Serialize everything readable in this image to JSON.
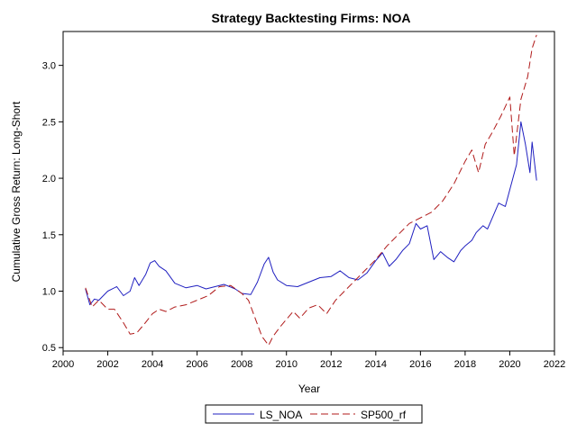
{
  "chart_data": {
    "type": "line",
    "title": "Strategy Backtesting  Firms: NOA",
    "xlabel": "Year",
    "ylabel": "Cumulative Gross Return: Long-Short",
    "xlim": [
      2000,
      2022
    ],
    "ylim": [
      0.47,
      3.3
    ],
    "x_ticks": [
      2000,
      2002,
      2004,
      2006,
      2008,
      2010,
      2012,
      2014,
      2016,
      2018,
      2020,
      2022
    ],
    "y_ticks": [
      0.5,
      1.0,
      1.5,
      2.0,
      2.5,
      3.0
    ],
    "x_tick_labels": [
      "2000",
      "2002",
      "2004",
      "2006",
      "2008",
      "2010",
      "2012",
      "2014",
      "2016",
      "2018",
      "2020",
      "2022"
    ],
    "y_tick_labels": [
      "0.5",
      "1.0",
      "1.5",
      "2.0",
      "2.5",
      "3.0"
    ],
    "grid": false,
    "legend_position": "bottom",
    "series": [
      {
        "name": "LS_NOA",
        "color": "#2020c0",
        "dash": "solid",
        "points": [
          [
            2001.0,
            1.02
          ],
          [
            2001.2,
            0.88
          ],
          [
            2001.4,
            0.93
          ],
          [
            2001.6,
            0.92
          ],
          [
            2001.8,
            0.96
          ],
          [
            2002.0,
            1.0
          ],
          [
            2002.4,
            1.04
          ],
          [
            2002.7,
            0.96
          ],
          [
            2003.0,
            1.0
          ],
          [
            2003.2,
            1.12
          ],
          [
            2003.4,
            1.05
          ],
          [
            2003.7,
            1.15
          ],
          [
            2003.9,
            1.25
          ],
          [
            2004.1,
            1.27
          ],
          [
            2004.3,
            1.22
          ],
          [
            2004.6,
            1.18
          ],
          [
            2005.0,
            1.07
          ],
          [
            2005.5,
            1.03
          ],
          [
            2006.0,
            1.05
          ],
          [
            2006.4,
            1.02
          ],
          [
            2006.8,
            1.04
          ],
          [
            2007.2,
            1.06
          ],
          [
            2007.7,
            1.02
          ],
          [
            2008.0,
            0.98
          ],
          [
            2008.4,
            0.97
          ],
          [
            2008.7,
            1.08
          ],
          [
            2009.0,
            1.24
          ],
          [
            2009.2,
            1.3
          ],
          [
            2009.4,
            1.17
          ],
          [
            2009.6,
            1.1
          ],
          [
            2010.0,
            1.05
          ],
          [
            2010.5,
            1.04
          ],
          [
            2011.0,
            1.08
          ],
          [
            2011.5,
            1.12
          ],
          [
            2012.0,
            1.13
          ],
          [
            2012.4,
            1.18
          ],
          [
            2012.8,
            1.12
          ],
          [
            2013.2,
            1.1
          ],
          [
            2013.6,
            1.16
          ],
          [
            2014.0,
            1.27
          ],
          [
            2014.3,
            1.34
          ],
          [
            2014.6,
            1.22
          ],
          [
            2014.9,
            1.28
          ],
          [
            2015.2,
            1.36
          ],
          [
            2015.5,
            1.42
          ],
          [
            2015.8,
            1.6
          ],
          [
            2016.0,
            1.55
          ],
          [
            2016.3,
            1.58
          ],
          [
            2016.6,
            1.28
          ],
          [
            2016.9,
            1.35
          ],
          [
            2017.2,
            1.3
          ],
          [
            2017.5,
            1.26
          ],
          [
            2017.8,
            1.36
          ],
          [
            2018.0,
            1.4
          ],
          [
            2018.3,
            1.45
          ],
          [
            2018.5,
            1.52
          ],
          [
            2018.8,
            1.58
          ],
          [
            2019.0,
            1.55
          ],
          [
            2019.2,
            1.64
          ],
          [
            2019.5,
            1.78
          ],
          [
            2019.8,
            1.75
          ],
          [
            2020.0,
            1.9
          ],
          [
            2020.3,
            2.12
          ],
          [
            2020.5,
            2.5
          ],
          [
            2020.7,
            2.3
          ],
          [
            2020.9,
            2.05
          ],
          [
            2021.0,
            2.32
          ],
          [
            2021.2,
            1.98
          ]
        ]
      },
      {
        "name": "SP500_rf",
        "color": "#b01a1a",
        "dash": "long-dash",
        "points": [
          [
            2001.0,
            1.03
          ],
          [
            2001.3,
            0.86
          ],
          [
            2001.6,
            0.92
          ],
          [
            2001.8,
            0.88
          ],
          [
            2002.0,
            0.84
          ],
          [
            2002.3,
            0.84
          ],
          [
            2002.7,
            0.72
          ],
          [
            2003.0,
            0.62
          ],
          [
            2003.3,
            0.63
          ],
          [
            2003.6,
            0.7
          ],
          [
            2004.0,
            0.8
          ],
          [
            2004.3,
            0.84
          ],
          [
            2004.6,
            0.82
          ],
          [
            2005.0,
            0.86
          ],
          [
            2005.5,
            0.88
          ],
          [
            2006.0,
            0.92
          ],
          [
            2006.5,
            0.96
          ],
          [
            2007.0,
            1.04
          ],
          [
            2007.5,
            1.05
          ],
          [
            2008.0,
            0.98
          ],
          [
            2008.3,
            0.92
          ],
          [
            2008.6,
            0.76
          ],
          [
            2008.9,
            0.6
          ],
          [
            2009.2,
            0.52
          ],
          [
            2009.4,
            0.6
          ],
          [
            2009.7,
            0.68
          ],
          [
            2010.0,
            0.75
          ],
          [
            2010.3,
            0.82
          ],
          [
            2010.6,
            0.76
          ],
          [
            2011.0,
            0.85
          ],
          [
            2011.4,
            0.88
          ],
          [
            2011.8,
            0.8
          ],
          [
            2012.2,
            0.92
          ],
          [
            2012.6,
            1.0
          ],
          [
            2013.0,
            1.08
          ],
          [
            2013.5,
            1.18
          ],
          [
            2014.0,
            1.28
          ],
          [
            2014.5,
            1.4
          ],
          [
            2015.0,
            1.5
          ],
          [
            2015.5,
            1.6
          ],
          [
            2016.0,
            1.65
          ],
          [
            2016.5,
            1.7
          ],
          [
            2017.0,
            1.8
          ],
          [
            2017.5,
            1.95
          ],
          [
            2018.0,
            2.15
          ],
          [
            2018.3,
            2.25
          ],
          [
            2018.6,
            2.05
          ],
          [
            2018.9,
            2.3
          ],
          [
            2019.2,
            2.4
          ],
          [
            2019.6,
            2.55
          ],
          [
            2020.0,
            2.72
          ],
          [
            2020.2,
            2.2
          ],
          [
            2020.5,
            2.7
          ],
          [
            2020.8,
            2.9
          ],
          [
            2021.0,
            3.15
          ],
          [
            2021.2,
            3.27
          ]
        ]
      }
    ]
  }
}
